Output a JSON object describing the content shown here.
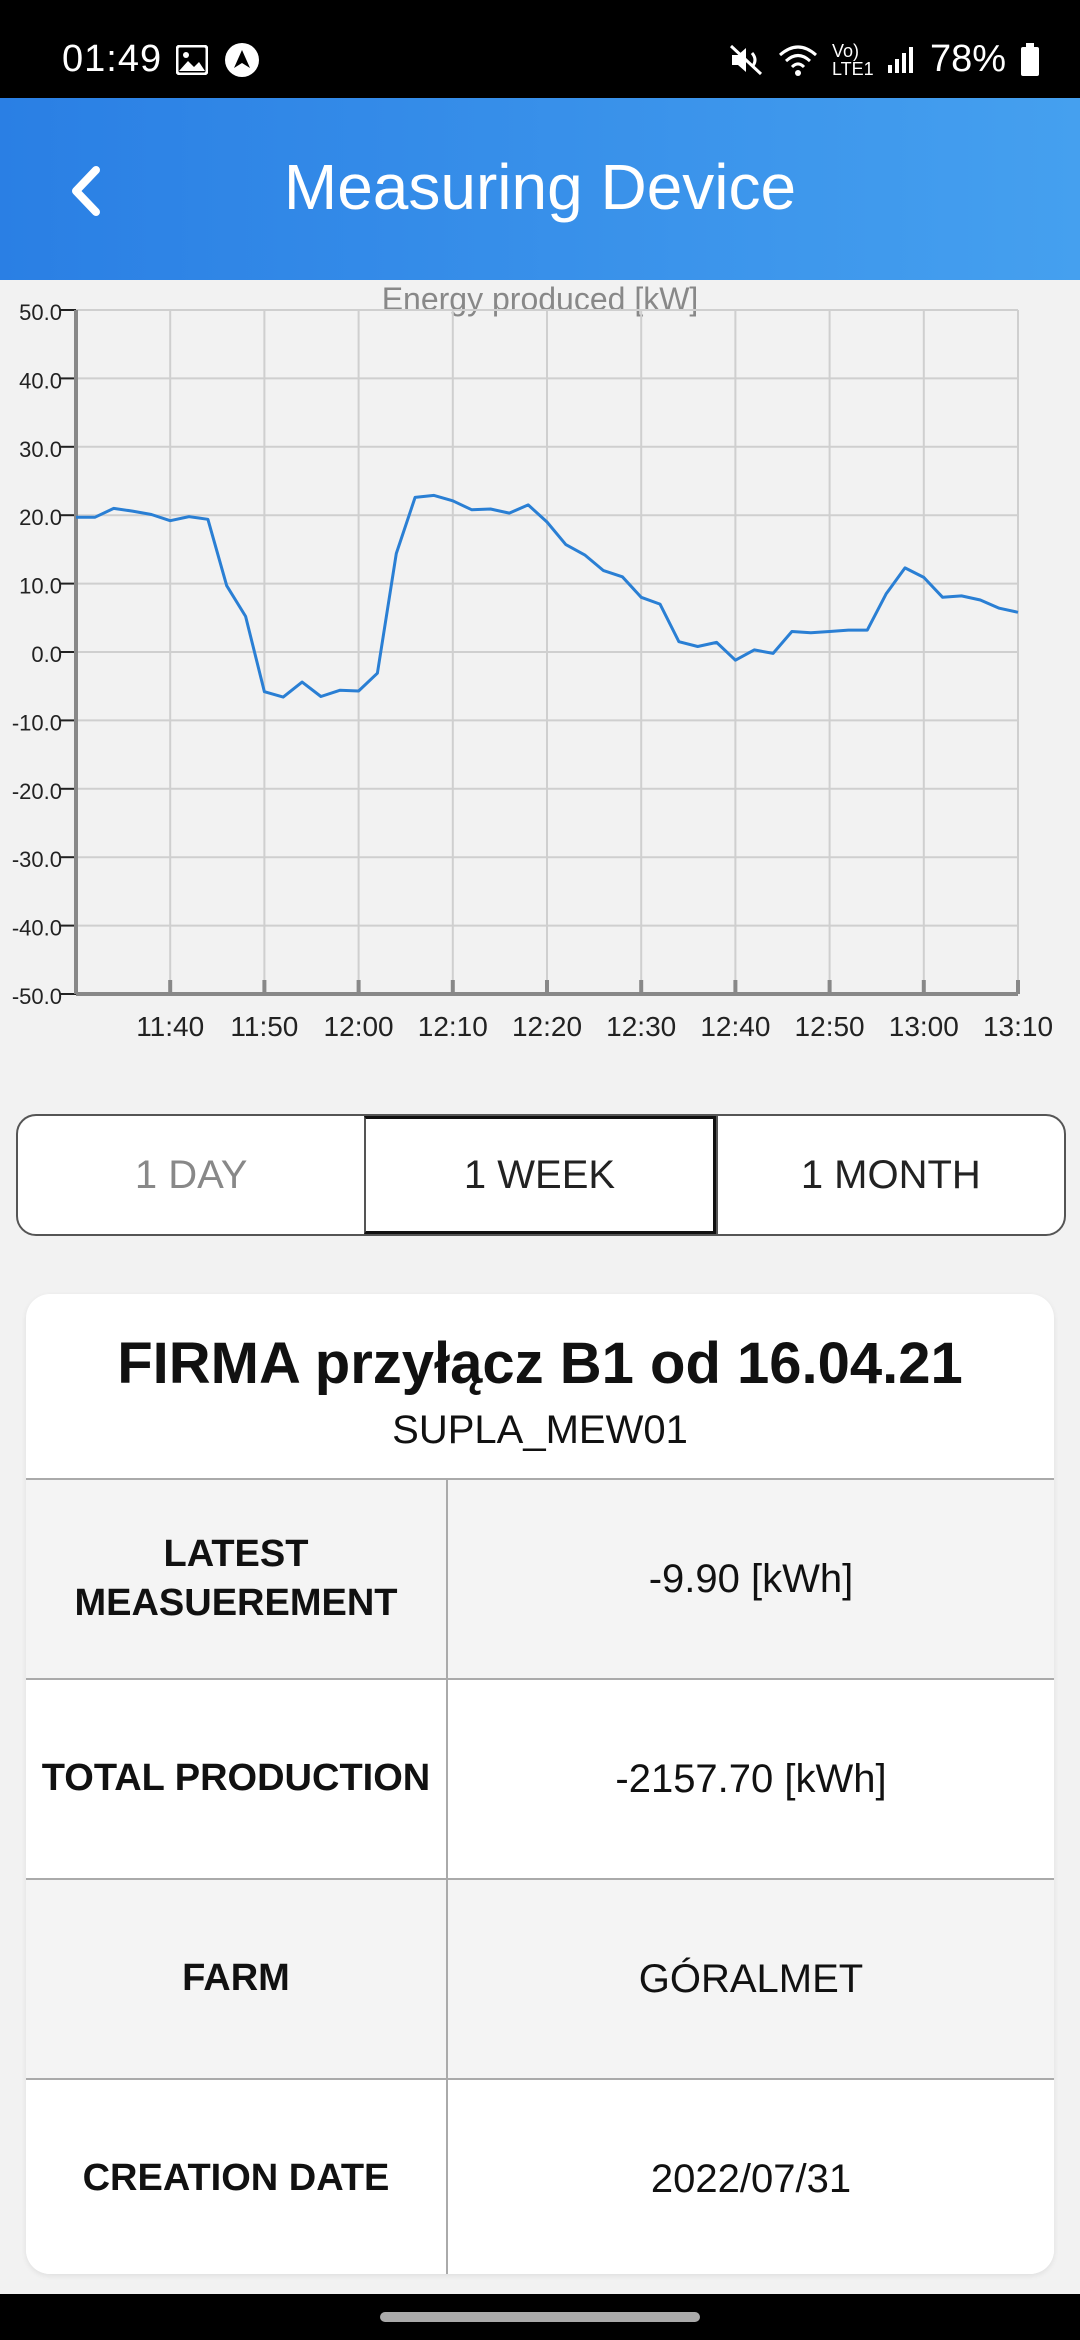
{
  "status_bar": {
    "time": "01:49",
    "battery": "78%",
    "network": "Vo) LTE1",
    "left_icons": [
      "image-icon",
      "navigation-icon"
    ],
    "right_icons": [
      "mute-icon",
      "wifi-icon",
      "signal-icon",
      "battery-icon"
    ]
  },
  "header": {
    "title": "Measuring Device",
    "back_icon": "chevron-left-icon",
    "gradient": [
      "#2a7fe4",
      "#45a0ef"
    ]
  },
  "chart_data": {
    "type": "line",
    "title": "Energy produced [kW]",
    "xlabel": "",
    "ylabel": "",
    "ylim": [
      -50,
      50
    ],
    "xlim": [
      "11:30",
      "13:10"
    ],
    "y_ticks": [
      "50.0",
      "40.0",
      "30.0",
      "20.0",
      "10.0",
      "0.0",
      "-10.0",
      "-20.0",
      "-30.0",
      "-40.0",
      "-50.0"
    ],
    "x_ticks": [
      "11:40",
      "11:50",
      "12:00",
      "12:10",
      "12:20",
      "12:30",
      "12:40",
      "12:50",
      "13:00",
      "13:10"
    ],
    "grid": true,
    "line_color": "#2a7fd4",
    "series": [
      {
        "x": [
          "11:30",
          "11:32",
          "11:34",
          "11:36",
          "11:38",
          "11:40",
          "11:42",
          "11:44",
          "11:46",
          "11:48",
          "11:50",
          "11:52",
          "11:54",
          "11:56",
          "11:58",
          "12:00",
          "12:02",
          "12:04",
          "12:06",
          "12:08",
          "12:10",
          "12:12",
          "12:14",
          "12:16",
          "12:18",
          "12:20",
          "12:22",
          "12:24",
          "12:26",
          "12:28",
          "12:30",
          "12:32",
          "12:34",
          "12:36",
          "12:38",
          "12:40",
          "12:42",
          "12:44",
          "12:46",
          "12:48",
          "12:50",
          "12:52",
          "12:54",
          "12:56",
          "12:58",
          "13:00",
          "13:02",
          "13:04",
          "13:06",
          "13:08",
          "13:10"
        ],
        "values": [
          19.7,
          19.7,
          21.0,
          20.6,
          20.1,
          19.2,
          19.8,
          19.4,
          9.7,
          5.2,
          -5.8,
          -6.6,
          -4.4,
          -6.5,
          -5.6,
          -5.7,
          -3.1,
          14.4,
          22.6,
          22.9,
          22.1,
          20.8,
          20.9,
          20.3,
          21.5,
          19.0,
          15.7,
          14.2,
          11.9,
          11.0,
          8.0,
          7.0,
          1.5,
          0.8,
          1.4,
          -1.2,
          0.3,
          -0.2,
          3.0,
          2.8,
          3.0,
          3.2,
          3.2,
          8.5,
          12.3,
          10.9,
          8.0,
          8.2,
          7.6,
          6.4,
          5.8
        ]
      }
    ]
  },
  "range_selector": {
    "options": [
      {
        "label": "1 DAY",
        "state": "inactive"
      },
      {
        "label": "1 WEEK",
        "state": "active"
      },
      {
        "label": "1 MONTH",
        "state": "normal"
      }
    ]
  },
  "device_card": {
    "title": "FIRMA przyłącz B1 od 16.04.21",
    "subtitle": "SUPLA_MEW01",
    "rows": [
      {
        "label": "LATEST\nMEASUEREMENT",
        "value": "-9.90 [kWh]"
      },
      {
        "label": "TOTAL PRODUCTION",
        "value": "-2157.70 [kWh]"
      },
      {
        "label": "FARM",
        "value": "GÓRALMET"
      },
      {
        "label": "CREATION DATE",
        "value": "2022/07/31"
      }
    ]
  }
}
